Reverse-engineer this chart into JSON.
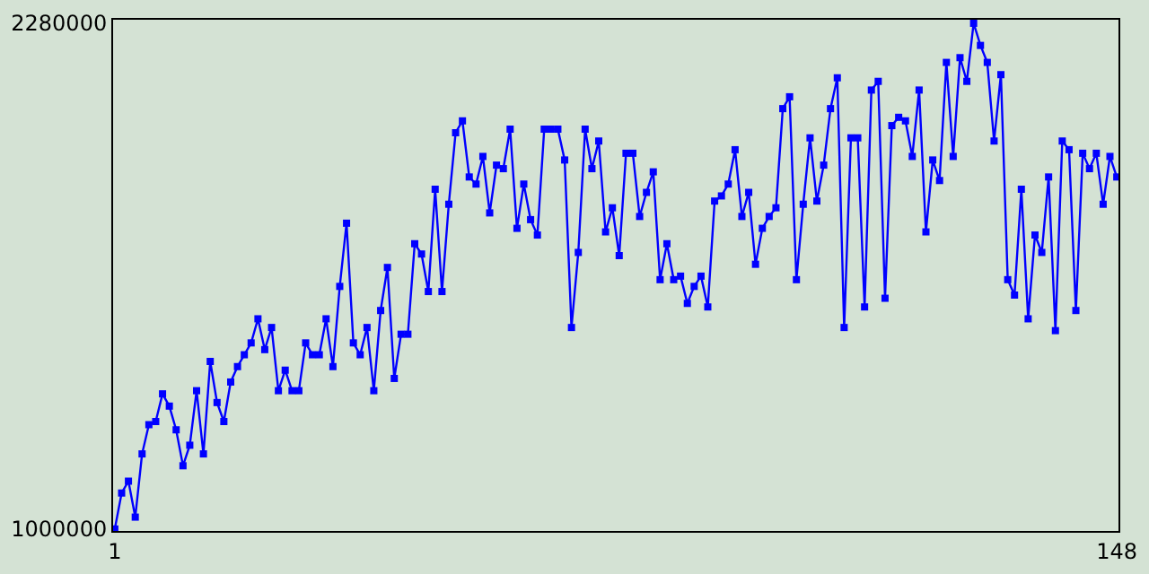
{
  "chart_data": {
    "type": "line",
    "x": [
      1,
      2,
      3,
      4,
      5,
      6,
      7,
      8,
      9,
      10,
      11,
      12,
      13,
      14,
      15,
      16,
      17,
      18,
      19,
      20,
      21,
      22,
      23,
      24,
      25,
      26,
      27,
      28,
      29,
      30,
      31,
      32,
      33,
      34,
      35,
      36,
      37,
      38,
      39,
      40,
      41,
      42,
      43,
      44,
      45,
      46,
      47,
      48,
      49,
      50,
      51,
      52,
      53,
      54,
      55,
      56,
      57,
      58,
      59,
      60,
      61,
      62,
      63,
      64,
      65,
      66,
      67,
      68,
      69,
      70,
      71,
      72,
      73,
      74,
      75,
      76,
      77,
      78,
      79,
      80,
      81,
      82,
      83,
      84,
      85,
      86,
      87,
      88,
      89,
      90,
      91,
      92,
      93,
      94,
      95,
      96,
      97,
      98,
      99,
      100,
      101,
      102,
      103,
      104,
      105,
      106,
      107,
      108,
      109,
      110,
      111,
      112,
      113,
      114,
      115,
      116,
      117,
      118,
      119,
      120,
      121,
      122,
      123,
      124,
      125,
      126,
      127,
      128,
      129,
      130,
      131,
      132,
      133,
      134,
      135,
      136,
      137,
      138,
      139,
      140,
      141,
      142,
      143,
      144,
      145,
      146,
      147,
      148
    ],
    "series": [
      {
        "color": "#0000ff",
        "values": [
          1000000,
          1091000,
          1121000,
          1030000,
          1190000,
          1264000,
          1272000,
          1342000,
          1311000,
          1251000,
          1160000,
          1212000,
          1350000,
          1190000,
          1424000,
          1320000,
          1272000,
          1372000,
          1411000,
          1441000,
          1471000,
          1532000,
          1454000,
          1510000,
          1350000,
          1402000,
          1350000,
          1350000,
          1471000,
          1441000,
          1441000,
          1532000,
          1411000,
          1614000,
          1774000,
          1471000,
          1441000,
          1510000,
          1350000,
          1553000,
          1662000,
          1381000,
          1493000,
          1493000,
          1722000,
          1696000,
          1601000,
          1860000,
          1601000,
          1822000,
          2003000,
          2033000,
          1891000,
          1873000,
          1943000,
          1800000,
          1921000,
          1912000,
          2012000,
          1761000,
          1873000,
          1783000,
          1744000,
          2012000,
          2012000,
          2012000,
          1934000,
          1510000,
          1700000,
          2012000,
          1912000,
          1982000,
          1752000,
          1813000,
          1692000,
          1951000,
          1951000,
          1791000,
          1852000,
          1904000,
          1631000,
          1722000,
          1631000,
          1640000,
          1571000,
          1614000,
          1640000,
          1562000,
          1830000,
          1843000,
          1873000,
          1960000,
          1791000,
          1852000,
          1670000,
          1761000,
          1791000,
          1813000,
          2064000,
          2094000,
          1631000,
          1822000,
          1990000,
          1830000,
          1921000,
          2064000,
          2142000,
          1510000,
          1990000,
          1990000,
          1562000,
          2111000,
          2133000,
          1584000,
          2021000,
          2042000,
          2033000,
          1943000,
          2111000,
          1752000,
          1934000,
          1882000,
          2181000,
          1943000,
          2193000,
          2133000,
          2280000,
          2224000,
          2181000,
          1982000,
          2150000,
          1631000,
          1592000,
          1860000,
          1532000,
          1744000,
          1700000,
          1891000,
          1502000,
          1982000,
          1960000,
          1553000,
          1951000,
          1912000,
          1951000,
          1822000,
          1943000,
          1891000
        ]
      }
    ],
    "xlim": [
      0.75,
      148.25
    ],
    "xticks": [
      1,
      148
    ],
    "ylim": [
      995000,
      2289000
    ],
    "yticks": [
      1000000,
      2280000
    ],
    "grid": false,
    "marker": "square",
    "line_style": "solid"
  }
}
